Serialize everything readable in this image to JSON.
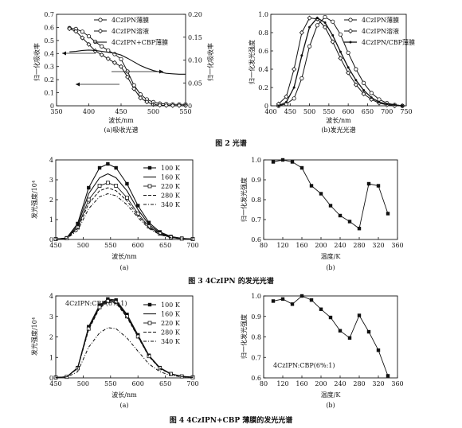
{
  "figure2": {
    "caption": "图 2   光谱",
    "panel_a": {
      "sublabel": "(a)吸收光谱",
      "xlabel": "波长/nm",
      "ylabel_left": "归一化吸收率",
      "ylabel_right": "归一化吸收率",
      "xticks": [
        "350",
        "400",
        "450",
        "500",
        "550"
      ],
      "yticks_left": [
        "0",
        "0.1",
        "0.2",
        "0.3",
        "0.4",
        "0.5",
        "0.6",
        "0.7"
      ],
      "yticks_right": [
        "0",
        "0.05",
        "0.10",
        "0.15",
        "0.20"
      ],
      "legend": [
        "4CzIPN薄膜",
        "4CzIPN溶液",
        "4CzIPN+CBP薄膜"
      ]
    },
    "panel_b": {
      "sublabel": "(b)发光光谱",
      "xlabel": "波长/nm",
      "ylabel": "归一化发光强度",
      "xticks": [
        "400",
        "450",
        "500",
        "550",
        "600",
        "650",
        "700",
        "750"
      ],
      "yticks": [
        "0",
        "0.2",
        "0.4",
        "0.6",
        "0.8",
        "1.0"
      ],
      "legend": [
        "4CzIPN薄膜",
        "4CzIPN溶液",
        "4CzIPN/CBP薄膜"
      ]
    }
  },
  "figure3": {
    "caption": "图 3   4CzIPN 的发光光谱",
    "panel_a": {
      "sublabel": "(a)",
      "xlabel": "波长/nm",
      "ylabel": "发光强度/10⁴",
      "xticks": [
        "450",
        "500",
        "550",
        "600",
        "650",
        "700"
      ],
      "yticks": [
        "0",
        "1",
        "2",
        "3",
        "4"
      ],
      "legend": [
        "100 K",
        "160 K",
        "220 K",
        "280 K",
        "340 K"
      ]
    },
    "panel_b": {
      "sublabel": "(b)",
      "xlabel": "温度/K",
      "ylabel": "归一化发光强度",
      "xticks": [
        "80",
        "120",
        "160",
        "200",
        "240",
        "280",
        "320",
        "360"
      ],
      "yticks": [
        "0.6",
        "0.7",
        "0.8",
        "0.9",
        "1.0"
      ]
    }
  },
  "figure4": {
    "caption": "图 4   4CzIPN+CBP 薄膜的发光光谱",
    "panel_a": {
      "sublabel": "(a)",
      "annotation": "4CzIPN:CBP(6%:1)",
      "xlabel": "波长/nm",
      "ylabel": "发光强度/10⁴",
      "xticks": [
        "450",
        "500",
        "550",
        "600",
        "650",
        "700"
      ],
      "yticks": [
        "0",
        "1",
        "2",
        "3",
        "4"
      ],
      "legend": [
        "100 K",
        "160 K",
        "220 K",
        "280 K",
        "340 K"
      ]
    },
    "panel_b": {
      "sublabel": "(b)",
      "annotation": "4CzIPN:CBP(6%:1)",
      "xlabel": "温度/K",
      "ylabel": "归一化发光强度",
      "xticks": [
        "80",
        "120",
        "160",
        "200",
        "240",
        "280",
        "320",
        "360"
      ],
      "yticks": [
        "0.6",
        "0.7",
        "0.8",
        "0.9",
        "1.0"
      ]
    }
  },
  "chart_data": [
    {
      "type": "line",
      "title": "(a)吸收光谱",
      "xlabel": "波长/nm",
      "ylabel": "归一化吸收率",
      "xlim": [
        350,
        550
      ],
      "ylim": [
        0,
        0.7
      ],
      "y2lim": [
        0,
        0.2
      ],
      "x": [
        370,
        380,
        390,
        400,
        410,
        420,
        430,
        440,
        450,
        460,
        470,
        480,
        490,
        500,
        510,
        520,
        530,
        540,
        550
      ],
      "series": [
        {
          "name": "4CzIPN薄膜",
          "axis": "right",
          "values": [
            0.17,
            0.168,
            0.162,
            0.152,
            0.14,
            0.13,
            0.121,
            0.113,
            0.102,
            0.075,
            0.045,
            0.025,
            0.014,
            0.008,
            0.005,
            0.004,
            0.003,
            0.003,
            0.003
          ]
        },
        {
          "name": "4CzIPN溶液",
          "axis": "left",
          "values": [
            0.59,
            0.57,
            0.52,
            0.47,
            0.42,
            0.39,
            0.36,
            0.33,
            0.3,
            0.22,
            0.13,
            0.06,
            0.03,
            0.01,
            0.005,
            0.003,
            0.002,
            0.002,
            0.002
          ]
        },
        {
          "name": "4CzIPN+CBP薄膜",
          "axis": "right",
          "values": [
            0.118,
            0.119,
            0.121,
            0.122,
            0.121,
            0.119,
            0.117,
            0.115,
            0.111,
            0.104,
            0.096,
            0.088,
            0.082,
            0.077,
            0.074,
            0.071,
            0.07,
            0.069,
            0.069
          ]
        }
      ]
    },
    {
      "type": "line",
      "title": "(b)发光光谱",
      "xlabel": "波长/nm",
      "ylabel": "归一化发光强度",
      "xlim": [
        400,
        750
      ],
      "ylim": [
        0,
        1.0
      ],
      "x": [
        420,
        440,
        460,
        480,
        500,
        520,
        540,
        560,
        580,
        600,
        620,
        640,
        660,
        680,
        700,
        720,
        740
      ],
      "series": [
        {
          "name": "4CzIPN薄膜",
          "values": [
            0.0,
            0.02,
            0.08,
            0.3,
            0.65,
            0.88,
            0.97,
            0.92,
            0.78,
            0.58,
            0.4,
            0.25,
            0.14,
            0.07,
            0.03,
            0.01,
            0.0
          ]
        },
        {
          "name": "4CzIPN溶液",
          "values": [
            0.02,
            0.1,
            0.4,
            0.8,
            0.96,
            0.95,
            0.86,
            0.7,
            0.52,
            0.36,
            0.23,
            0.13,
            0.07,
            0.03,
            0.01,
            0.0,
            0.0
          ]
        },
        {
          "name": "4CzIPN/CBP薄膜",
          "values": [
            0.0,
            0.04,
            0.2,
            0.55,
            0.86,
            0.96,
            0.91,
            0.77,
            0.59,
            0.42,
            0.28,
            0.17,
            0.09,
            0.04,
            0.02,
            0.01,
            0.0
          ]
        }
      ]
    },
    {
      "type": "line",
      "title": "图 3(a)",
      "xlabel": "波长/nm",
      "ylabel": "发光强度/10⁴",
      "xlim": [
        450,
        700
      ],
      "ylim": [
        0,
        4
      ],
      "x": [
        450,
        470,
        490,
        510,
        530,
        545,
        560,
        580,
        600,
        620,
        640,
        660,
        680,
        700
      ],
      "series": [
        {
          "name": "100 K",
          "values": [
            0.02,
            0.08,
            0.8,
            2.6,
            3.6,
            3.8,
            3.6,
            2.8,
            1.7,
            0.85,
            0.38,
            0.15,
            0.06,
            0.02
          ]
        },
        {
          "name": "160 K",
          "values": [
            0.02,
            0.07,
            0.7,
            2.3,
            3.1,
            3.3,
            3.1,
            2.45,
            1.5,
            0.75,
            0.33,
            0.13,
            0.05,
            0.02
          ]
        },
        {
          "name": "220 K",
          "values": [
            0.02,
            0.06,
            0.6,
            2.0,
            2.7,
            2.85,
            2.7,
            2.1,
            1.3,
            0.65,
            0.29,
            0.11,
            0.04,
            0.02
          ]
        },
        {
          "name": "280 K",
          "values": [
            0.02,
            0.05,
            0.55,
            1.8,
            2.45,
            2.6,
            2.45,
            1.95,
            1.2,
            0.6,
            0.26,
            0.1,
            0.04,
            0.02
          ]
        },
        {
          "name": "340 K",
          "values": [
            0.02,
            0.05,
            0.45,
            1.55,
            2.15,
            2.3,
            2.2,
            1.75,
            1.1,
            0.55,
            0.24,
            0.09,
            0.03,
            0.01
          ]
        }
      ]
    },
    {
      "type": "line",
      "title": "图 3(b)",
      "xlabel": "温度/K",
      "ylabel": "归一化发光强度",
      "xlim": [
        80,
        360
      ],
      "ylim": [
        0.6,
        1.0
      ],
      "x": [
        100,
        120,
        140,
        160,
        180,
        200,
        220,
        240,
        260,
        280,
        300,
        320,
        340
      ],
      "series": [
        {
          "values": [
            0.99,
            1.0,
            0.99,
            0.96,
            0.87,
            0.83,
            0.77,
            0.72,
            0.69,
            0.655,
            0.88,
            0.87,
            0.73
          ]
        }
      ]
    },
    {
      "type": "line",
      "title": "图 4(a)",
      "xlabel": "波长/nm",
      "ylabel": "发光强度/10⁴",
      "xlim": [
        450,
        700
      ],
      "ylim": [
        0,
        4
      ],
      "x": [
        450,
        470,
        490,
        510,
        530,
        545,
        560,
        580,
        600,
        620,
        640,
        660,
        680,
        700
      ],
      "series": [
        {
          "name": "100 K",
          "values": [
            0.02,
            0.05,
            0.5,
            2.5,
            3.55,
            3.85,
            3.8,
            3.1,
            2.1,
            1.1,
            0.5,
            0.2,
            0.08,
            0.03
          ]
        },
        {
          "name": "160 K",
          "values": [
            0.02,
            0.05,
            0.48,
            2.45,
            3.5,
            3.8,
            3.75,
            3.05,
            2.05,
            1.08,
            0.48,
            0.19,
            0.07,
            0.03
          ]
        },
        {
          "name": "220 K",
          "values": [
            0.02,
            0.05,
            0.47,
            2.4,
            3.45,
            3.75,
            3.7,
            3.0,
            2.02,
            1.06,
            0.47,
            0.19,
            0.07,
            0.03
          ]
        },
        {
          "name": "280 K",
          "values": [
            0.02,
            0.05,
            0.46,
            2.35,
            3.4,
            3.7,
            3.65,
            2.95,
            2.0,
            1.04,
            0.46,
            0.18,
            0.07,
            0.03
          ]
        },
        {
          "name": "340 K",
          "values": [
            0.02,
            0.04,
            0.3,
            1.5,
            2.2,
            2.45,
            2.4,
            1.95,
            1.3,
            0.68,
            0.3,
            0.12,
            0.05,
            0.02
          ]
        }
      ]
    },
    {
      "type": "line",
      "title": "图 4(b)",
      "xlabel": "温度/K",
      "ylabel": "归一化发光强度",
      "xlim": [
        80,
        360
      ],
      "ylim": [
        0.6,
        1.0
      ],
      "x": [
        100,
        120,
        140,
        160,
        180,
        200,
        220,
        240,
        260,
        280,
        300,
        320,
        340
      ],
      "series": [
        {
          "values": [
            0.975,
            0.985,
            0.96,
            1.0,
            0.98,
            0.935,
            0.895,
            0.83,
            0.795,
            0.905,
            0.825,
            0.735,
            0.61
          ]
        }
      ]
    }
  ]
}
